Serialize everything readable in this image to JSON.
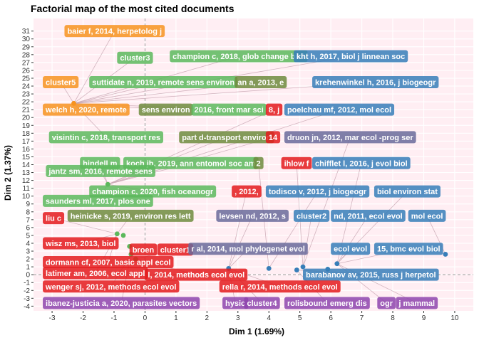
{
  "chart_data": {
    "type": "scatter",
    "title": "Factorial map of the most cited documents",
    "xlabel": "Dim 1 (1.69%)",
    "ylabel": "Dim 2 (1.37%)",
    "xlim": [
      -3.6,
      10.6
    ],
    "ylim": [
      -4.6,
      32.6
    ],
    "xticks": [
      -3,
      -2,
      -1,
      0,
      1,
      2,
      3,
      4,
      5,
      6,
      7,
      8,
      9,
      10
    ],
    "yticks": [
      -4,
      -3,
      -2,
      -1,
      0,
      1,
      2,
      3,
      4,
      5,
      6,
      7,
      8,
      9,
      10,
      11,
      12,
      13,
      14,
      15,
      16,
      17,
      18,
      19,
      20,
      21,
      22,
      23,
      24,
      25,
      26,
      27,
      28,
      29,
      30,
      31
    ],
    "grid": true,
    "reference_lines": {
      "x": 0,
      "y": 0
    },
    "colors": {
      "panel": "#FFEEF3",
      "grid": "#FFFFFF",
      "reference": "#999999",
      "connector": "#C9A8B4",
      "orange": "#F7931E",
      "red": "#E41A1C",
      "green": "#5CB85C",
      "olive": "#6E8B3D",
      "blue": "#377EB8",
      "purple": "#8E44AD",
      "slate": "#6A6A9A"
    },
    "points": [
      {
        "x": -2.3,
        "y": 21.8,
        "color": "orange"
      },
      {
        "x": -1.2,
        "y": 11.5,
        "color": "green"
      },
      {
        "x": -0.9,
        "y": 5.2,
        "color": "green"
      },
      {
        "x": -0.7,
        "y": 5.0,
        "color": "green"
      },
      {
        "x": -0.5,
        "y": 3.6,
        "color": "green"
      },
      {
        "x": -0.45,
        "y": 2.6,
        "color": "green"
      },
      {
        "x": -0.3,
        "y": 2.0,
        "color": "green"
      },
      {
        "x": 2.7,
        "y": 0.8,
        "color": "blue"
      },
      {
        "x": 4.0,
        "y": 0.8,
        "color": "blue"
      },
      {
        "x": 4.9,
        "y": 0.6,
        "color": "blue"
      },
      {
        "x": 5.1,
        "y": 1.0,
        "color": "blue"
      },
      {
        "x": 5.9,
        "y": 0.7,
        "color": "blue"
      },
      {
        "x": 6.2,
        "y": 1.4,
        "color": "blue"
      },
      {
        "x": 9.7,
        "y": 2.6,
        "color": "blue"
      }
    ],
    "labels": [
      {
        "text": "baier f, 2014, herpetolog j",
        "x": -2.6,
        "y": 31,
        "color": "orange"
      },
      {
        "text": "cluster3",
        "x": -0.9,
        "y": 27.6,
        "color": "green"
      },
      {
        "text": "champion c, 2018, glob change biol",
        "x": 0.8,
        "y": 27.8,
        "color": "green"
      },
      {
        "text": "kht h, 2017, biol j linnean soc",
        "x": 4.8,
        "y": 27.8,
        "color": "blue"
      },
      {
        "text": "cluster5",
        "x": -3.3,
        "y": 24.5,
        "color": "orange"
      },
      {
        "text": "suttidate n, 2019, remote sens environ",
        "x": -1.8,
        "y": 24.5,
        "color": "green"
      },
      {
        "text": "an a, 2013, e",
        "x": 2.9,
        "y": 24.5,
        "color": "olive"
      },
      {
        "text": "krehenwinkel h, 2016, j biogeogr",
        "x": 5.4,
        "y": 24.5,
        "color": "blue"
      },
      {
        "text": "welch h, 2020, remote",
        "x": -3.3,
        "y": 21.0,
        "color": "orange"
      },
      {
        "text": "sens environ",
        "x": -0.2,
        "y": 21.0,
        "color": "olive"
      },
      {
        "text": "2016, front mar sci",
        "x": 1.5,
        "y": 21.0,
        "color": "green"
      },
      {
        "text": "8, j",
        "x": 3.9,
        "y": 21.0,
        "color": "red"
      },
      {
        "text": "poelchau mf, 2012, mol ecol",
        "x": 4.5,
        "y": 21.0,
        "color": "blue"
      },
      {
        "text": "visintin c, 2018, transport res",
        "x": -3.1,
        "y": 17.5,
        "color": "green"
      },
      {
        "text": "part d-transport environ",
        "x": 1.1,
        "y": 17.5,
        "color": "olive"
      },
      {
        "text": "14",
        "x": 3.9,
        "y": 17.5,
        "color": "red"
      },
      {
        "text": "druon jn, 2012, mar ecol -prog ser",
        "x": 4.5,
        "y": 17.5,
        "color": "slate"
      },
      {
        "text": "hindell m",
        "x": -2.1,
        "y": 14.2,
        "color": "green"
      },
      {
        "text": "koch jb, 2019, ann entomol soc am",
        "x": -0.7,
        "y": 14.2,
        "color": "green"
      },
      {
        "text": "2",
        "x": 3.5,
        "y": 14.2,
        "color": "olive"
      },
      {
        "text": "ihlow f",
        "x": 4.4,
        "y": 14.2,
        "color": "red"
      },
      {
        "text": "chifflet l, 2016, j evol biol",
        "x": 5.4,
        "y": 14.2,
        "color": "blue"
      },
      {
        "text": "jantz sm, 2016, remote sens",
        "x": -3.2,
        "y": 13.2,
        "color": "green"
      },
      {
        "text": "champion c, 2020, fish oceanogr",
        "x": -1.8,
        "y": 10.6,
        "color": "green"
      },
      {
        "text": ", 2012,",
        "x": 2.8,
        "y": 10.6,
        "color": "red"
      },
      {
        "text": "todisco v, 2012, j biogeogr",
        "x": 3.9,
        "y": 10.6,
        "color": "blue"
      },
      {
        "text": "biol environ stat",
        "x": 7.4,
        "y": 10.6,
        "color": "blue"
      },
      {
        "text": "saunders ml, 2017, plos one",
        "x": -3.3,
        "y": 9.4,
        "color": "green"
      },
      {
        "text": "liu c",
        "x": -3.3,
        "y": 7.2,
        "color": "red"
      },
      {
        "text": "heinicke s, 2019, environ res lett",
        "x": -2.5,
        "y": 7.5,
        "color": "olive"
      },
      {
        "text": "levsen nd, 2012, s",
        "x": 2.3,
        "y": 7.5,
        "color": "slate"
      },
      {
        "text": "cluster2",
        "x": 4.8,
        "y": 7.5,
        "color": "blue"
      },
      {
        "text": "nd, 2011, ecol evol",
        "x": 6.0,
        "y": 7.5,
        "color": "blue"
      },
      {
        "text": "mol ecol",
        "x": 8.5,
        "y": 7.5,
        "color": "blue"
      },
      {
        "text": "wisz ms, 2013, biol",
        "x": -3.3,
        "y": 4.0,
        "color": "red"
      },
      {
        "text": "broen",
        "x": -0.5,
        "y": 3.2,
        "color": "red"
      },
      {
        "text": "cluster1",
        "x": 0.4,
        "y": 3.2,
        "color": "red"
      },
      {
        "text": "r al, 2014, mol phylogenet evol",
        "x": 1.4,
        "y": 3.3,
        "color": "slate"
      },
      {
        "text": "ecol evol",
        "x": 6.0,
        "y": 3.3,
        "color": "blue"
      },
      {
        "text": "15, bmc evol biol",
        "x": 7.4,
        "y": 3.3,
        "color": "blue"
      },
      {
        "text": "dormann cf, 2007, basic appl ecol",
        "x": -3.3,
        "y": 1.6,
        "color": "red"
      },
      {
        "text": "latimer am, 2006, ecol appl",
        "x": -3.3,
        "y": 0.2,
        "color": "red"
      },
      {
        "text": "l, 2014, methods ecol evol",
        "x": 0.0,
        "y": 0.0,
        "color": "red"
      },
      {
        "text": "barabanov av, 2015, russ j herpetol",
        "x": 5.1,
        "y": 0.0,
        "color": "blue"
      },
      {
        "text": "wenger sj, 2012, methods ecol evol",
        "x": -3.3,
        "y": -1.5,
        "color": "red"
      },
      {
        "text": "rella r, 2014, methods ecol evol",
        "x": 2.4,
        "y": -1.5,
        "color": "red"
      },
      {
        "text": "ibanez-justicia a, 2020, parasites vectors",
        "x": -3.3,
        "y": -3.6,
        "color": "purple"
      },
      {
        "text": "hysic",
        "x": 2.5,
        "y": -3.6,
        "color": "purple"
      },
      {
        "text": "cluster4",
        "x": 3.2,
        "y": -3.6,
        "color": "purple"
      },
      {
        "text": "rolisbound emerg dis",
        "x": 4.5,
        "y": -3.6,
        "color": "purple"
      },
      {
        "text": "ogr",
        "x": 7.5,
        "y": -3.6,
        "color": "purple"
      },
      {
        "text": "j mammal",
        "x": 8.1,
        "y": -3.6,
        "color": "purple"
      }
    ]
  }
}
